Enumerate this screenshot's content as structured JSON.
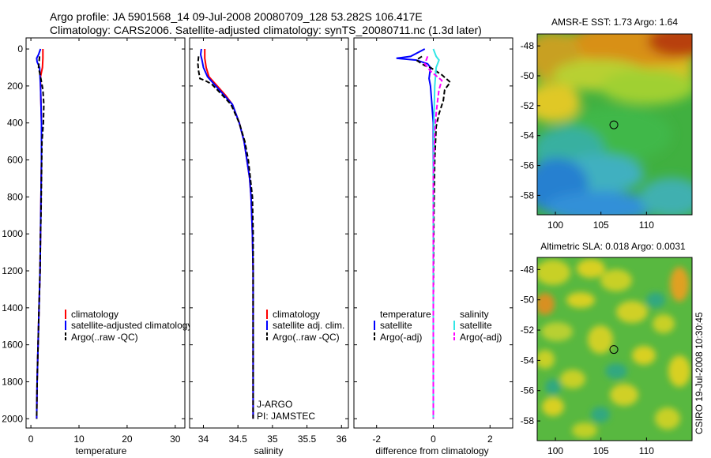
{
  "header": {
    "title_line1": "Argo profile: JA 5901568_14 09-Jul-2008 20080709_128 53.282S 106.417E",
    "title_line2": "Climatology: CARS2006. Satellite-adjusted climatology: synTS_20080711.nc (1.3d later)"
  },
  "side_label": "CSIRO 19-Jul-2008 10:30:45",
  "pi_note": {
    "line1": "J-ARGO",
    "line2": "PI: JAMSTEC"
  },
  "colors": {
    "red": "#ff0000",
    "blue": "#0000ff",
    "black": "#000000",
    "cyan": "#33e6e6",
    "magenta": "#ff00ff"
  },
  "chart_data": [
    {
      "type": "line",
      "xlabel": "temperature",
      "xlim": [
        -1,
        32
      ],
      "xticks": [
        0,
        10,
        20,
        30
      ],
      "ylim": [
        2050,
        0
      ],
      "yticks": [
        0,
        200,
        400,
        600,
        800,
        1000,
        1200,
        1400,
        1600,
        1800,
        2000
      ],
      "legend": [
        "climatology",
        "satellite-adjusted climatology",
        "Argo(..raw -QC)"
      ],
      "series": [
        {
          "name": "climatology",
          "color": "red",
          "dash": false,
          "points": [
            [
              2.5,
              0
            ],
            [
              2.5,
              50
            ],
            [
              2.4,
              100
            ],
            [
              2.0,
              150
            ],
            [
              2.0,
              200
            ],
            [
              2.1,
              300
            ],
            [
              2.2,
              400
            ],
            [
              2.2,
              600
            ],
            [
              2.1,
              800
            ],
            [
              2.0,
              1000
            ],
            [
              1.9,
              1200
            ],
            [
              1.7,
              1400
            ],
            [
              1.5,
              1600
            ],
            [
              1.3,
              1800
            ],
            [
              1.2,
              2000
            ]
          ]
        },
        {
          "name": "satellite-adjusted climatology",
          "color": "blue",
          "dash": false,
          "points": [
            [
              2.0,
              0
            ],
            [
              1.6,
              30
            ],
            [
              1.2,
              50
            ],
            [
              1.3,
              70
            ],
            [
              1.8,
              100
            ],
            [
              1.9,
              150
            ],
            [
              2.0,
              200
            ],
            [
              2.1,
              300
            ],
            [
              2.2,
              400
            ],
            [
              2.2,
              600
            ],
            [
              2.1,
              800
            ],
            [
              2.0,
              1000
            ],
            [
              1.9,
              1200
            ],
            [
              1.7,
              1400
            ],
            [
              1.5,
              1600
            ],
            [
              1.3,
              1800
            ],
            [
              1.2,
              2000
            ]
          ]
        },
        {
          "name": "Argo(..raw -QC)",
          "color": "black",
          "dash": true,
          "points": [
            [
              1.8,
              40
            ],
            [
              1.6,
              100
            ],
            [
              2.0,
              150
            ],
            [
              2.5,
              220
            ],
            [
              2.7,
              300
            ],
            [
              2.6,
              400
            ],
            [
              2.3,
              500
            ],
            [
              2.2,
              700
            ],
            [
              2.1,
              900
            ],
            [
              2.0,
              1000
            ],
            [
              1.9,
              1200
            ],
            [
              1.7,
              1400
            ],
            [
              1.5,
              1600
            ],
            [
              1.3,
              1800
            ],
            [
              1.2,
              2000
            ]
          ]
        }
      ]
    },
    {
      "type": "line",
      "xlabel": "salinity",
      "xlim": [
        33.8,
        36.1
      ],
      "xticks": [
        34,
        34.5,
        35,
        35.5,
        36
      ],
      "ylim": [
        2050,
        0
      ],
      "legend": [
        "climatology",
        "satellite adj. clim.",
        "Argo(..raw -QC)"
      ],
      "series": [
        {
          "name": "climatology",
          "color": "red",
          "dash": false,
          "points": [
            [
              34.02,
              0
            ],
            [
              34.02,
              50
            ],
            [
              34.04,
              100
            ],
            [
              34.08,
              150
            ],
            [
              34.2,
              200
            ],
            [
              34.32,
              250
            ],
            [
              34.42,
              300
            ],
            [
              34.52,
              400
            ],
            [
              34.59,
              500
            ],
            [
              34.63,
              600
            ],
            [
              34.67,
              700
            ],
            [
              34.69,
              800
            ],
            [
              34.71,
              1000
            ],
            [
              34.72,
              1200
            ],
            [
              34.72,
              1400
            ],
            [
              34.72,
              1600
            ],
            [
              34.72,
              1800
            ],
            [
              34.72,
              2000
            ]
          ]
        },
        {
          "name": "satellite adj. clim.",
          "color": "blue",
          "dash": false,
          "points": [
            [
              33.97,
              0
            ],
            [
              33.96,
              30
            ],
            [
              33.98,
              60
            ],
            [
              34.0,
              100
            ],
            [
              34.06,
              150
            ],
            [
              34.18,
              200
            ],
            [
              34.3,
              250
            ],
            [
              34.42,
              300
            ],
            [
              34.52,
              400
            ],
            [
              34.59,
              500
            ],
            [
              34.63,
              600
            ],
            [
              34.67,
              700
            ],
            [
              34.69,
              800
            ],
            [
              34.71,
              1000
            ],
            [
              34.72,
              1200
            ],
            [
              34.72,
              1400
            ],
            [
              34.72,
              1600
            ],
            [
              34.72,
              1800
            ],
            [
              34.72,
              2000
            ]
          ]
        },
        {
          "name": "Argo(..raw -QC)",
          "color": "black",
          "dash": true,
          "points": [
            [
              33.93,
              40
            ],
            [
              33.92,
              80
            ],
            [
              33.93,
              120
            ],
            [
              33.95,
              160
            ],
            [
              34.02,
              170
            ],
            [
              34.12,
              190
            ],
            [
              34.25,
              240
            ],
            [
              34.4,
              300
            ],
            [
              34.52,
              400
            ],
            [
              34.6,
              500
            ],
            [
              34.65,
              600
            ],
            [
              34.68,
              700
            ],
            [
              34.71,
              800
            ],
            [
              34.72,
              1000
            ],
            [
              34.72,
              1200
            ],
            [
              34.72,
              1400
            ],
            [
              34.72,
              1600
            ],
            [
              34.72,
              1800
            ],
            [
              34.72,
              2000
            ]
          ]
        }
      ]
    },
    {
      "type": "line",
      "xlabel": "difference from climatology",
      "xlim": [
        -2.8,
        2.8
      ],
      "xticks": [
        -2,
        0,
        2
      ],
      "ylim": [
        2050,
        0
      ],
      "legend_groups": [
        {
          "title": "temperature",
          "items": [
            "satellite",
            "Argo(-adj)"
          ]
        },
        {
          "title": "salinity",
          "items": [
            "satellite",
            "Argo(-adj)"
          ]
        }
      ],
      "series": [
        {
          "name": "temperature satellite",
          "color": "blue",
          "dash": false,
          "points": [
            [
              -0.3,
              0
            ],
            [
              -0.8,
              40
            ],
            [
              -1.3,
              50
            ],
            [
              -0.6,
              60
            ],
            [
              -0.2,
              80
            ],
            [
              -0.1,
              100
            ],
            [
              -0.15,
              160
            ],
            [
              -0.1,
              200
            ],
            [
              -0.05,
              300
            ],
            [
              0,
              400
            ],
            [
              0,
              700
            ],
            [
              0,
              1000
            ],
            [
              0,
              1400
            ],
            [
              0,
              2000
            ]
          ]
        },
        {
          "name": "temperature Argo(-adj)",
          "color": "black",
          "dash": true,
          "points": [
            [
              -0.4,
              40
            ],
            [
              -0.6,
              60
            ],
            [
              -0.3,
              90
            ],
            [
              -0.1,
              100
            ],
            [
              0.3,
              140
            ],
            [
              0.6,
              180
            ],
            [
              0.4,
              220
            ],
            [
              0.35,
              280
            ],
            [
              0.2,
              350
            ],
            [
              0.1,
              420
            ],
            [
              0.05,
              600
            ],
            [
              0.02,
              900
            ],
            [
              0,
              1400
            ],
            [
              0,
              2000
            ]
          ]
        },
        {
          "name": "salinity satellite",
          "color": "cyan",
          "dash": false,
          "points": [
            [
              0,
              0
            ],
            [
              0.1,
              40
            ],
            [
              0.2,
              60
            ],
            [
              0.1,
              100
            ],
            [
              0.05,
              200
            ],
            [
              0.02,
              400
            ],
            [
              0,
              700
            ],
            [
              0,
              1400
            ],
            [
              0,
              2000
            ]
          ]
        },
        {
          "name": "salinity Argo(-adj)",
          "color": "magenta",
          "dash": true,
          "points": [
            [
              -0.2,
              40
            ],
            [
              -0.3,
              80
            ],
            [
              -0.1,
              120
            ],
            [
              0.3,
              170
            ],
            [
              0.2,
              220
            ],
            [
              0.15,
              280
            ],
            [
              0.1,
              350
            ],
            [
              0.05,
              450
            ],
            [
              0,
              700
            ],
            [
              0,
              1400
            ],
            [
              0,
              2000
            ]
          ]
        }
      ]
    },
    {
      "type": "heatmap",
      "title": "AMSR-E SST: 1.73 Argo: 1.64",
      "xlim": [
        98,
        115
      ],
      "ylim": [
        -59.3,
        -47.2
      ],
      "xticks": [
        100,
        105,
        110
      ],
      "yticks": [
        -48,
        -50,
        -52,
        -54,
        -56,
        -58
      ],
      "marker": {
        "lon": 106.417,
        "lat": -53.282
      }
    },
    {
      "type": "heatmap",
      "title": "Altimetric SLA: 0.018 Argo: 0.0031",
      "xlim": [
        98,
        115
      ],
      "ylim": [
        -59.3,
        -47.2
      ],
      "xticks": [
        100,
        105,
        110
      ],
      "yticks": [
        -48,
        -50,
        -52,
        -54,
        -56,
        -58
      ],
      "marker": {
        "lon": 106.417,
        "lat": -53.282
      }
    }
  ]
}
